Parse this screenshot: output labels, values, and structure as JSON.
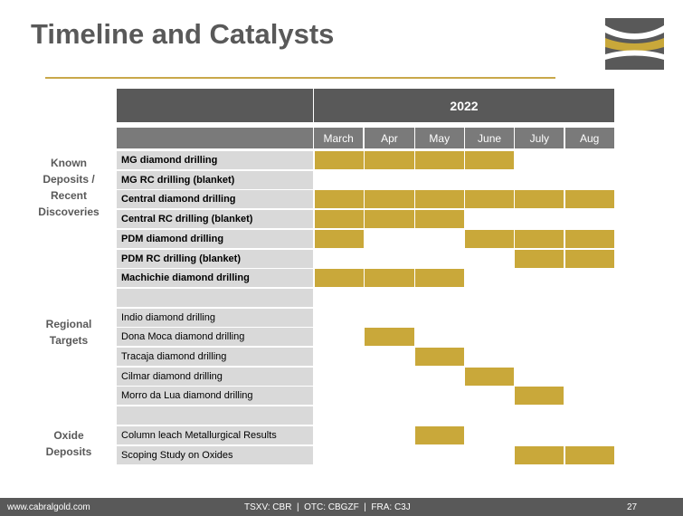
{
  "title": "Timeline and Catalysts",
  "year": "2022",
  "months": [
    "March",
    "Apr",
    "May",
    "June",
    "July",
    "Aug"
  ],
  "groups": [
    {
      "label": "Known Deposits / Recent Discoveries"
    },
    {
      "label": "Regional Targets"
    },
    {
      "label": "Oxide Deposits"
    }
  ],
  "tasks": [
    {
      "label": "MG diamond drilling",
      "bold": true,
      "months": [
        0,
        1,
        2,
        3
      ]
    },
    {
      "label": "MG RC drilling (blanket)",
      "bold": true,
      "months": []
    },
    {
      "label": "Central diamond drilling",
      "bold": true,
      "months": [
        0,
        1,
        2,
        3,
        4,
        5
      ]
    },
    {
      "label": "Central RC drilling (blanket)",
      "bold": true,
      "months": [
        0,
        1,
        2
      ]
    },
    {
      "label": "PDM diamond drilling",
      "bold": true,
      "months": [
        0,
        3,
        4,
        5
      ]
    },
    {
      "label": "PDM RC drilling (blanket)",
      "bold": true,
      "months": [
        4,
        5
      ]
    },
    {
      "label": "Machichie diamond drilling",
      "bold": true,
      "months": [
        0,
        1,
        2
      ]
    },
    {
      "label": "",
      "bold": false,
      "months": []
    },
    {
      "label": "Indio diamond drilling",
      "bold": false,
      "months": []
    },
    {
      "label": "Dona Moca  diamond drilling",
      "bold": false,
      "months": [
        1
      ]
    },
    {
      "label": "Tracaja diamond drilling",
      "bold": false,
      "months": [
        2
      ]
    },
    {
      "label": "Cilmar diamond drilling",
      "bold": false,
      "months": [
        3
      ]
    },
    {
      "label": "Morro da Lua diamond drilling",
      "bold": false,
      "months": [
        4
      ]
    },
    {
      "label": "",
      "bold": false,
      "months": []
    },
    {
      "label": "Column leach Metallurgical Results",
      "bold": false,
      "months": [
        2
      ]
    },
    {
      "label": "Scoping Study on Oxides",
      "bold": false,
      "months": [
        4,
        5
      ]
    }
  ],
  "footer": {
    "website": "www.cabralgold.com",
    "tickers": "TSXV: CBR  |  OTC: CBGZF  |  FRA: C3J",
    "page": "27"
  },
  "colors": {
    "accent": "#c9a83a",
    "dark": "#595959",
    "cell": "#d9d9d9"
  }
}
